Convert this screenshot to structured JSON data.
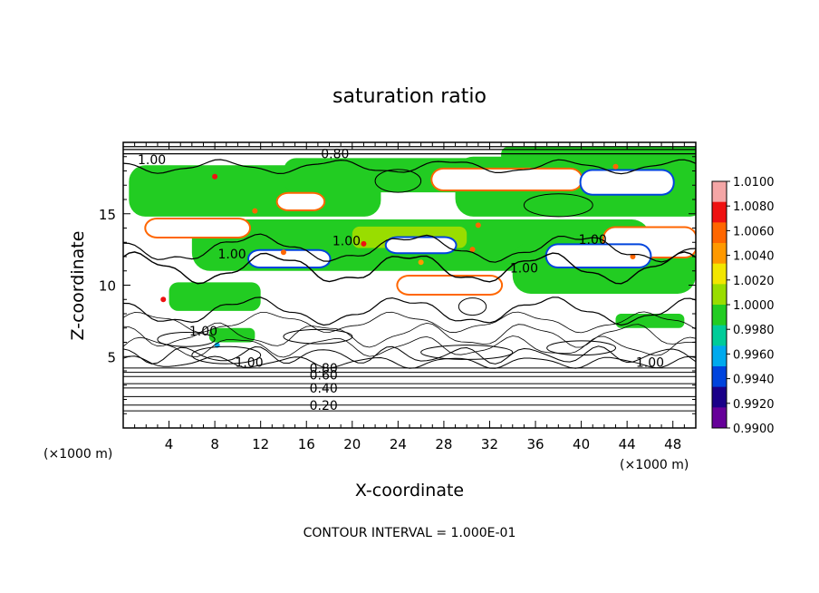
{
  "chart_data": {
    "type": "heatmap",
    "title": "saturation ratio",
    "xlabel": "X-coordinate",
    "ylabel": "Z-coordinate",
    "x_unit": "(×1000 m)",
    "y_unit": "(×1000 m)",
    "xlim": [
      0,
      50
    ],
    "ylim": [
      0,
      20
    ],
    "x_ticks": [
      4,
      8,
      12,
      16,
      20,
      24,
      28,
      32,
      36,
      40,
      44,
      48
    ],
    "y_ticks": [
      5,
      10,
      15
    ],
    "footer": "CONTOUR INTERVAL = 1.000E-01",
    "colorbar": {
      "levels": [
        "1.0100",
        "1.0080",
        "1.0060",
        "1.0040",
        "1.0020",
        "1.0000",
        "0.9980",
        "0.9960",
        "0.9940",
        "0.9920",
        "0.9900"
      ],
      "colors": [
        "#f4a6a6",
        "#ee1111",
        "#ff6600",
        "#ff9900",
        "#f2e600",
        "#99dd00",
        "#22cc22",
        "#00cc99",
        "#00aaee",
        "#0044dd",
        "#1a0088",
        "#660099"
      ]
    },
    "contour_labels": [
      {
        "text": "0.80",
        "x": 18.5,
        "z": 19.2
      },
      {
        "text": "1.00",
        "x": 2.5,
        "z": 18.8
      },
      {
        "text": "1.00",
        "x": 9.5,
        "z": 12.2
      },
      {
        "text": "1.00",
        "x": 19.5,
        "z": 13.1
      },
      {
        "text": "1.00",
        "x": 41.0,
        "z": 13.2
      },
      {
        "text": "1.00",
        "x": 35.0,
        "z": 11.2
      },
      {
        "text": "1.00",
        "x": 7.0,
        "z": 6.8
      },
      {
        "text": "1.00",
        "x": 11.0,
        "z": 4.6
      },
      {
        "text": "1.00",
        "x": 46.0,
        "z": 4.6
      },
      {
        "text": "0.80",
        "x": 17.5,
        "z": 4.2
      },
      {
        "text": "0.60",
        "x": 17.5,
        "z": 3.7
      },
      {
        "text": "0.40",
        "x": 17.5,
        "z": 2.8
      },
      {
        "text": "0.20",
        "x": 17.5,
        "z": 1.6
      }
    ]
  }
}
